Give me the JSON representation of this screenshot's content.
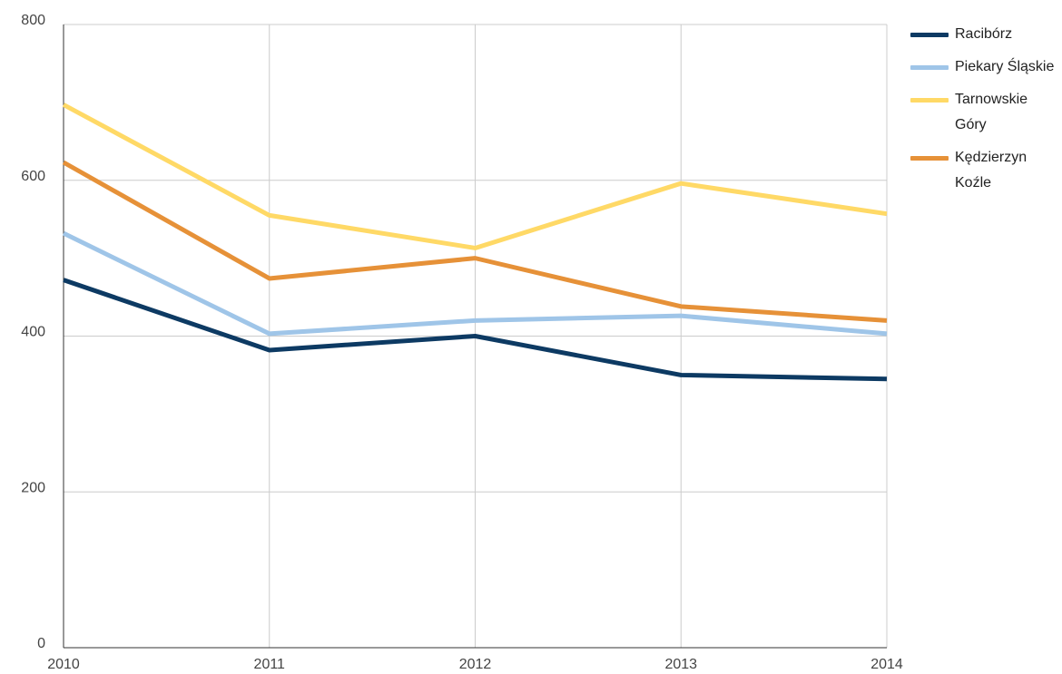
{
  "chart_data": {
    "type": "line",
    "x": [
      2010,
      2011,
      2012,
      2013,
      2014
    ],
    "xlim": [
      2010,
      2014
    ],
    "xticks": [
      2010,
      2011,
      2012,
      2013,
      2014
    ],
    "ylim": [
      0,
      800
    ],
    "yticks": [
      0,
      200,
      400,
      600,
      800
    ],
    "grid": true,
    "legend": "right",
    "series": [
      {
        "name": "Racibórz",
        "color": "#0d3a63",
        "values": [
          472,
          382,
          400,
          350,
          345
        ]
      },
      {
        "name": "Piekary Śląskie",
        "color": "#9fc5e8",
        "values": [
          532,
          403,
          420,
          426,
          403
        ]
      },
      {
        "name": "Tarnowskie Góry",
        "color": "#ffd966",
        "values": [
          697,
          555,
          513,
          596,
          557
        ]
      },
      {
        "name": "Kędzierzyn Koźle",
        "color": "#e69138",
        "values": [
          623,
          474,
          500,
          438,
          420
        ]
      }
    ]
  }
}
